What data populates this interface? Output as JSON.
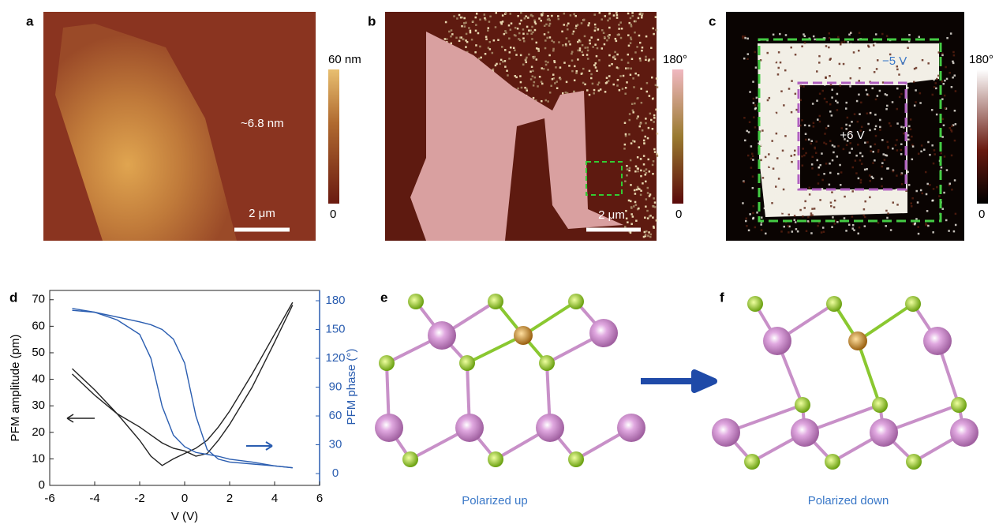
{
  "panels": {
    "a": {
      "label": "a",
      "colorbar_max": "60 nm",
      "colorbar_min": "0",
      "annotation": "~6.8 nm",
      "scale_bar": "2 μm"
    },
    "b": {
      "label": "b",
      "colorbar_max": "180°",
      "colorbar_min": "0",
      "scale_bar": "2 μm"
    },
    "c": {
      "label": "c",
      "colorbar_max": "180°",
      "colorbar_min": "0",
      "outer_label": "−5 V",
      "inner_label": "+6 V"
    },
    "e": {
      "label": "e",
      "caption": "Polarized up"
    },
    "f": {
      "label": "f",
      "caption": "Polarized down"
    }
  },
  "chart_data": {
    "type": "line",
    "label": "d",
    "x": [
      -5,
      -4,
      -3,
      -2,
      -1.5,
      -1,
      -0.5,
      0,
      0.5,
      1,
      1.5,
      2,
      3,
      4,
      4.8
    ],
    "xlim": [
      -6,
      6
    ],
    "xticks": [
      -6,
      -4,
      -2,
      0,
      2,
      4,
      6
    ],
    "xlabel": "V (V)",
    "ylabel": "PFM amplitude (pm)",
    "ylim": [
      0,
      73.5
    ],
    "yticks": [
      0,
      10,
      20,
      30,
      40,
      50,
      60,
      70
    ],
    "y2label": "PFM phase (°)",
    "y2lim": [
      -12.3,
      190.7
    ],
    "y2ticks": [
      0,
      30,
      60,
      90,
      120,
      150,
      180
    ],
    "series": [
      {
        "color": "#222222",
        "values": [
          44,
          36,
          27,
          17,
          11,
          7.5,
          10,
          12,
          14,
          17,
          22,
          28,
          42,
          57,
          69
        ]
      },
      {
        "color": "#222222",
        "values": [
          42,
          34,
          27,
          22,
          19,
          16,
          14,
          13,
          11,
          12,
          17,
          23,
          37,
          54,
          68
        ]
      },
      {
        "color": "#2a5db0",
        "axis": "y2",
        "values": [
          170,
          168,
          160,
          145,
          120,
          70,
          40,
          28,
          22,
          20,
          18,
          15,
          12,
          8,
          6
        ]
      },
      {
        "color": "#2a5db0",
        "axis": "y2",
        "values": [
          172,
          168,
          163,
          158,
          155,
          150,
          140,
          115,
          60,
          25,
          15,
          12,
          10,
          8,
          6
        ]
      }
    ]
  }
}
